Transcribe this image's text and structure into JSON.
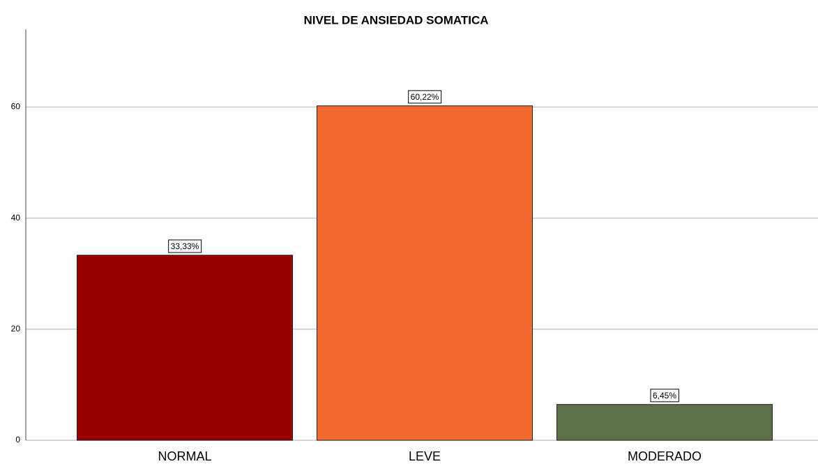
{
  "chart_data": {
    "type": "bar",
    "title": "NIVEL DE ANSIEDAD SOMATICA",
    "categories": [
      "NORMAL",
      "LEVE",
      "MODERADO"
    ],
    "values": [
      33.33,
      60.22,
      6.45
    ],
    "value_labels": [
      "33,33%",
      "60,22%",
      "6,45%"
    ],
    "colors": [
      "#990000",
      "#f26a2e",
      "#5b714a"
    ],
    "ylim": [
      0,
      74
    ],
    "yticks": [
      0,
      20,
      40,
      60
    ],
    "grid": true
  }
}
